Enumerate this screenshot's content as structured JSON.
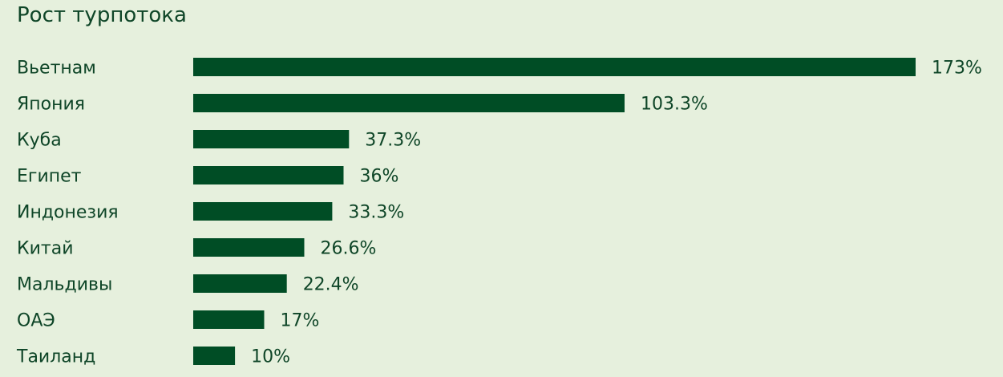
{
  "chart_data": {
    "type": "bar",
    "orientation": "horizontal",
    "title": "Рост турпотока",
    "xlabel": "",
    "ylabel": "",
    "categories": [
      "Вьетнам",
      "Япония",
      "Куба",
      "Египет",
      "Индонезия",
      "Китай",
      "Мальдивы",
      "ОАЭ",
      "Таиланд"
    ],
    "values": [
      173,
      103.3,
      37.3,
      36,
      33.3,
      26.6,
      22.4,
      17,
      10
    ],
    "value_labels": [
      "173%",
      "103.3%",
      "37.3%",
      "36%",
      "33.3%",
      "26.6%",
      "22.4%",
      "17%",
      "10%"
    ],
    "xlim": [
      0,
      173
    ],
    "grid": false,
    "legend": "none"
  },
  "colors": {
    "background": "#e6f0dd",
    "bar": "#004d25",
    "text": "#0e4527"
  }
}
